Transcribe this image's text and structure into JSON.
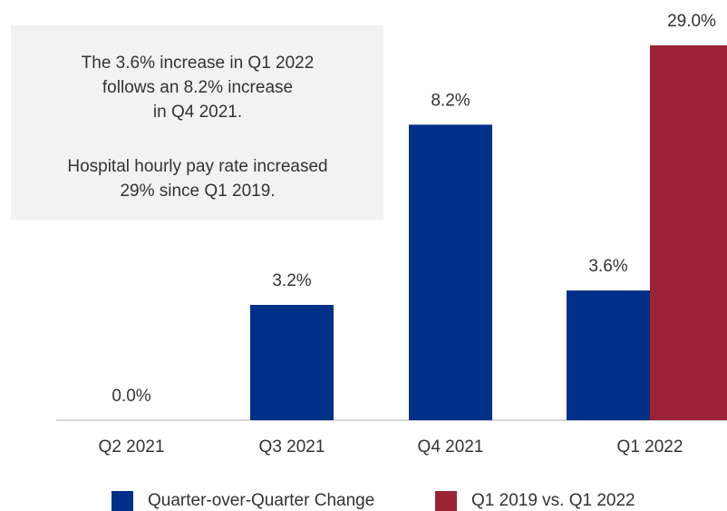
{
  "chart_data": {
    "type": "bar",
    "categories": [
      "Q2 2021",
      "Q3 2021",
      "Q4 2021",
      "Q1 2022"
    ],
    "series": [
      {
        "name": "Quarter-over-Quarter Change",
        "color": "#003087",
        "values": [
          0.0,
          3.2,
          8.2,
          3.6
        ],
        "value_labels": [
          "0.0%",
          "3.2%",
          "8.2%",
          "3.6%"
        ]
      },
      {
        "name": "Q1 2019 vs. Q1 2022",
        "color": "#9b2335",
        "axis": "y2",
        "values": [
          null,
          null,
          null,
          29.0
        ],
        "value_labels": [
          null,
          null,
          null,
          "29.0%"
        ]
      }
    ],
    "ylim": [
      0,
      10.4
    ],
    "y2lim": [
      0,
      29
    ],
    "legend": "bottom",
    "annotation": [
      [
        "The 3.6% increase in Q1 2022",
        "follows an 8.2% increase",
        "in Q4 2021."
      ],
      [
        "Hospital hourly pay rate increased",
        "29% since Q1 2019."
      ]
    ]
  }
}
